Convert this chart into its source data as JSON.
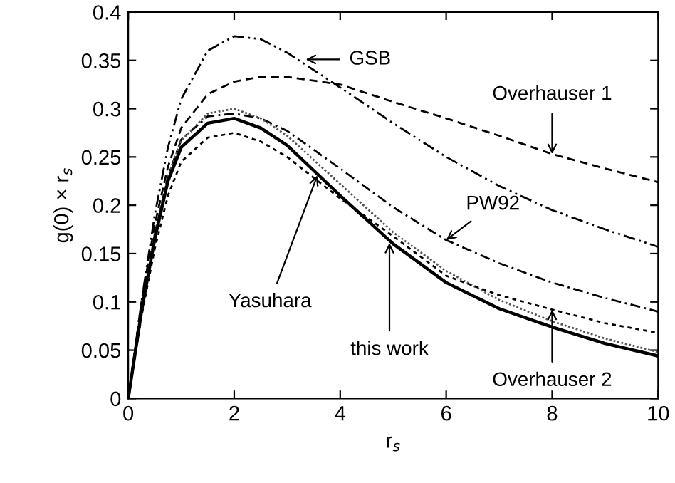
{
  "chart_data": {
    "type": "line",
    "xlabel": "r$_{s}$",
    "ylabel": "g(0) × r$_{s}$",
    "xlim": [
      0,
      10
    ],
    "ylim": [
      0,
      0.4
    ],
    "xticks": [
      0,
      2,
      4,
      6,
      8,
      10
    ],
    "yticks": [
      0,
      0.05,
      0.1,
      0.15,
      0.2,
      0.25,
      0.3,
      0.35,
      0.4
    ],
    "x": [
      0,
      0.25,
      0.5,
      0.75,
      1,
      1.5,
      2,
      2.5,
      3,
      4,
      5,
      6,
      7,
      8,
      9,
      10
    ],
    "marker": "none",
    "series": [
      {
        "color": "#000000",
        "line_style": "dashed",
        "values": [
          0,
          0.1,
          0.19,
          0.26,
          0.31,
          0.36,
          0.375,
          0.372,
          0.358,
          0.322,
          0.285,
          0.25,
          0.22,
          0.195,
          0.175,
          0.157
        ]
      },
      {
        "color": "#000000",
        "line_style": "dashed",
        "values": [
          0,
          0.1,
          0.18,
          0.24,
          0.28,
          0.315,
          0.328,
          0.333,
          0.333,
          0.325,
          0.307,
          0.29,
          0.272,
          0.253,
          0.238,
          0.224
        ]
      },
      {
        "color": "#000000",
        "line_style": "dashed",
        "values": [
          0,
          0.09,
          0.17,
          0.23,
          0.268,
          0.292,
          0.295,
          0.29,
          0.277,
          0.238,
          0.198,
          0.164,
          0.14,
          0.12,
          0.104,
          0.09
        ]
      },
      {
        "color": "#555555",
        "line_style": "dotted",
        "values": [
          0,
          0.09,
          0.17,
          0.23,
          0.267,
          0.295,
          0.3,
          0.29,
          0.272,
          0.222,
          0.172,
          0.132,
          0.102,
          0.08,
          0.062,
          0.048
        ]
      },
      {
        "color": "#000000",
        "line_style": "solid",
        "values": [
          0,
          0.09,
          0.165,
          0.225,
          0.26,
          0.285,
          0.29,
          0.28,
          0.262,
          0.21,
          0.16,
          0.12,
          0.093,
          0.074,
          0.057,
          0.044
        ]
      },
      {
        "color": "#000000",
        "line_style": "dotted",
        "values": [
          0,
          0.085,
          0.155,
          0.21,
          0.245,
          0.27,
          0.275,
          0.266,
          0.25,
          0.207,
          0.168,
          0.127,
          0.107,
          0.092,
          0.078,
          0.068
        ]
      }
    ],
    "annotations": [
      {
        "text": "GSB",
        "x": 3.35,
        "y": 0.351
      },
      {
        "text": "Overhauser 1",
        "x": 8,
        "y": 0.253
      },
      {
        "text": "PW92",
        "x": 6,
        "y": 0.164
      },
      {
        "text": "Yasuhara",
        "x": 3.57,
        "y": 0.231
      },
      {
        "text": "this work",
        "x": 4.93,
        "y": 0.161
      },
      {
        "text": "Overhauser 2",
        "x": 8,
        "y": 0.092
      }
    ]
  }
}
